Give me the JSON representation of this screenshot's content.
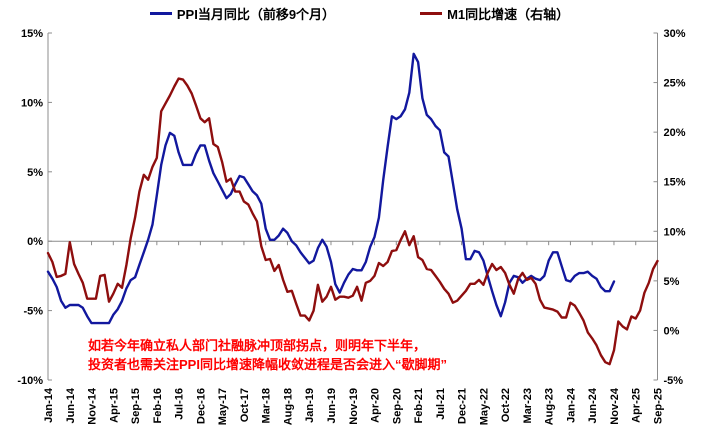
{
  "legend": [
    {
      "label": "PPI当月同比（前移9个月）",
      "color": "#12189E"
    },
    {
      "label": "M1同比增速（右轴）",
      "color": "#8E0E0E"
    }
  ],
  "left_axis": {
    "ticks": [
      {
        "label": "15%",
        "value": 15
      },
      {
        "label": "10%",
        "value": 10
      },
      {
        "label": "5%",
        "value": 5
      },
      {
        "label": "0%",
        "value": 0
      },
      {
        "label": "-5%",
        "value": -5
      },
      {
        "label": "-10%",
        "value": -10
      }
    ]
  },
  "right_axis": {
    "ticks": [
      {
        "label": "30%",
        "value": 30
      },
      {
        "label": "25%",
        "value": 25
      },
      {
        "label": "20%",
        "value": 20
      },
      {
        "label": "15%",
        "value": 15
      },
      {
        "label": "10%",
        "value": 10
      },
      {
        "label": "5%",
        "value": 5
      },
      {
        "label": "0%",
        "value": 0
      },
      {
        "label": "-5%",
        "value": -5
      }
    ]
  },
  "x_axis": {
    "labels": [
      "Jan-14",
      "Jun-14",
      "Nov-14",
      "Apr-15",
      "Sep-15",
      "Feb-16",
      "Jul-16",
      "Dec-16",
      "May-17",
      "Oct-17",
      "Mar-18",
      "Aug-18",
      "Jan-19",
      "Jun-19",
      "Nov-19",
      "Apr-20",
      "Sep-20",
      "Feb-21",
      "Jul-21",
      "Dec-21",
      "May-22",
      "Oct-22",
      "Mar-23",
      "Aug-23",
      "Jan-24",
      "Jun-24",
      "Nov-24",
      "Apr-25",
      "Sep-25"
    ],
    "label_step_months": 5
  },
  "annotation": {
    "line1": "如若今年确立私人部门社融脉冲顶部拐点，则明年下半年，",
    "line2": "投资者也需关注PPI同比增速降幅收敛进程是否会进入“歇脚期”",
    "color": "#FF0000"
  },
  "chart_data": {
    "type": "line",
    "months_total": 141,
    "x_start": "Jan-14",
    "x_end": "Sep-25",
    "left_ylim": [
      -10,
      15
    ],
    "right_ylim": [
      -5,
      30
    ],
    "grid": false,
    "legend_position": "top-center",
    "axis_color": "#8C8C8C",
    "series": [
      {
        "name": "PPI当月同比（前移9个月）",
        "data_name": "ppi-line",
        "axis": "left",
        "color": "#12189E",
        "start_month": 0,
        "values": [
          -2.2,
          -2.7,
          -3.3,
          -4.3,
          -4.8,
          -4.6,
          -4.6,
          -4.6,
          -4.8,
          -5.4,
          -5.9,
          -5.9,
          -5.9,
          -5.9,
          -5.9,
          -5.3,
          -4.9,
          -4.3,
          -3.4,
          -2.8,
          -2.6,
          -1.7,
          -0.8,
          0.1,
          1.2,
          3.3,
          5.5,
          6.9,
          7.8,
          7.6,
          6.4,
          5.5,
          5.5,
          5.5,
          6.3,
          6.9,
          6.9,
          5.8,
          4.9,
          4.3,
          3.7,
          3.1,
          3.4,
          4.1,
          4.7,
          4.6,
          4.1,
          3.6,
          3.3,
          2.7,
          0.9,
          0.1,
          0.1,
          0.4,
          0.9,
          0.6,
          0.0,
          -0.3,
          -0.8,
          -1.2,
          -1.6,
          -1.4,
          -0.5,
          0.1,
          -0.4,
          -1.5,
          -3.1,
          -3.7,
          -3.0,
          -2.4,
          -2.0,
          -2.1,
          -2.1,
          -1.5,
          -0.4,
          0.3,
          1.7,
          4.4,
          6.8,
          9.0,
          8.8,
          9.0,
          9.5,
          10.7,
          13.5,
          12.9,
          10.3,
          9.1,
          8.8,
          8.3,
          8.0,
          6.4,
          6.1,
          4.2,
          2.3,
          0.9,
          -1.3,
          -1.3,
          -0.7,
          -0.8,
          -1.4,
          -2.5,
          -3.6,
          -4.6,
          -5.4,
          -4.4,
          -3.0,
          -2.5,
          -2.6,
          -3.0,
          -2.7,
          -2.5,
          -2.7,
          -2.8,
          -2.5,
          -1.4,
          -0.8,
          -0.8,
          -1.8,
          -2.8,
          -2.9,
          -2.5,
          -2.3,
          -2.3,
          -2.2,
          -2.5,
          -2.7,
          -3.3,
          -3.6,
          -3.6,
          -2.9
        ]
      },
      {
        "name": "M1同比增速（右轴）",
        "data_name": "m1-line",
        "axis": "right",
        "color": "#8E0E0E",
        "start_month": 0,
        "values": [
          7.8,
          6.9,
          5.4,
          5.5,
          5.7,
          8.9,
          6.7,
          5.7,
          4.8,
          3.2,
          3.2,
          3.2,
          5.5,
          5.6,
          2.9,
          3.7,
          4.7,
          4.3,
          6.6,
          9.3,
          11.4,
          14.0,
          15.7,
          15.2,
          16.5,
          17.4,
          22.1,
          22.9,
          23.7,
          24.6,
          25.4,
          25.3,
          24.7,
          23.9,
          22.7,
          21.4,
          21.0,
          21.4,
          18.8,
          18.5,
          17.0,
          15.0,
          15.3,
          14.0,
          14.0,
          13.0,
          12.7,
          11.8,
          11.0,
          8.5,
          7.1,
          7.2,
          6.0,
          6.6,
          5.1,
          3.9,
          4.0,
          2.7,
          1.5,
          1.5,
          1.0,
          2.0,
          4.6,
          2.9,
          3.4,
          4.4,
          3.1,
          3.4,
          3.4,
          3.3,
          3.5,
          4.4,
          3.0,
          4.8,
          5.0,
          5.5,
          6.8,
          6.5,
          6.9,
          8.0,
          8.1,
          9.1,
          10.0,
          8.6,
          9.5,
          7.4,
          7.1,
          6.2,
          6.1,
          5.5,
          4.9,
          4.2,
          3.7,
          2.8,
          3.0,
          3.5,
          4.0,
          4.7,
          4.7,
          5.1,
          4.6,
          5.8,
          6.7,
          6.1,
          6.4,
          5.8,
          4.6,
          3.7,
          5.2,
          5.8,
          5.1,
          5.3,
          4.7,
          3.1,
          2.3,
          2.2,
          2.1,
          1.9,
          1.3,
          1.3,
          2.8,
          2.5,
          1.8,
          1.0,
          -0.2,
          -0.8,
          -1.5,
          -2.5,
          -3.2,
          -3.4,
          -2.0,
          0.9,
          0.4,
          0.1,
          1.4,
          1.2,
          2.0,
          3.8,
          4.8,
          6.2,
          7.0
        ]
      }
    ]
  }
}
